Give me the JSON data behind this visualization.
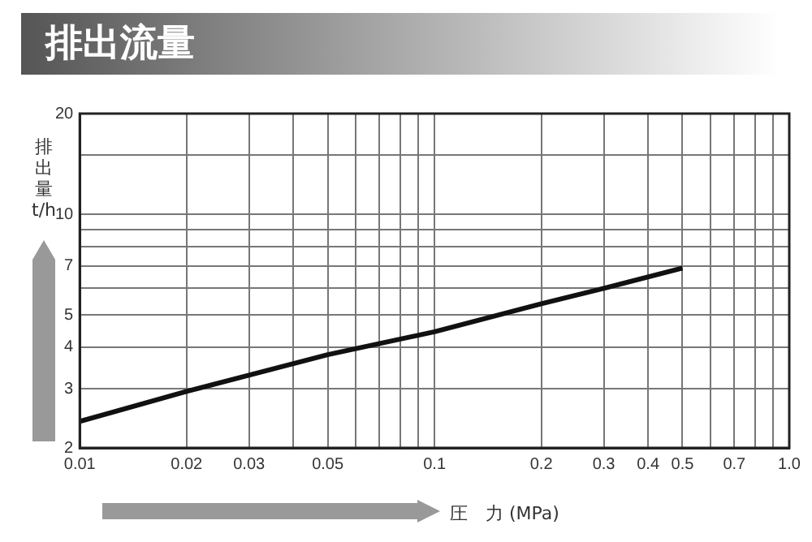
{
  "chart_data": {
    "type": "line",
    "title": "排出流量",
    "xlabel": "圧　力 (MPa)",
    "ylabel": "排出量 t/h",
    "log": "xy",
    "grid": true,
    "marker": "none",
    "line_style": "solid",
    "x": [
      0.01,
      0.02,
      0.03,
      0.05,
      0.1,
      0.2,
      0.3,
      0.5
    ],
    "series": [
      {
        "color": "#111111",
        "values": [
          2.4,
          2.95,
          3.3,
          3.8,
          4.45,
          5.4,
          6.0,
          6.9
        ]
      }
    ],
    "xlim": [
      0.01,
      1
    ],
    "xticks": [
      0.01,
      0.02,
      0.03,
      {
        "value": 0.04,
        "label": null
      },
      0.05,
      {
        "value": 0.06,
        "label": null
      },
      {
        "value": 0.07,
        "label": null
      },
      {
        "value": 0.08,
        "label": null
      },
      {
        "value": 0.09,
        "label": null
      },
      0.1,
      0.2,
      0.3,
      0.4,
      0.5,
      {
        "value": 0.6,
        "label": null
      },
      0.7,
      {
        "value": 0.8,
        "label": null
      },
      {
        "value": 0.9,
        "label": null
      },
      {
        "value": 1,
        "label": "1.0"
      }
    ],
    "ylim": [
      2,
      20
    ],
    "yticks": [
      2,
      3,
      4,
      5,
      {
        "value": 6,
        "label": null
      },
      7,
      {
        "value": 8,
        "label": null
      },
      {
        "value": 9,
        "label": null
      },
      10,
      {
        "value": 15,
        "label": null
      },
      20
    ]
  }
}
